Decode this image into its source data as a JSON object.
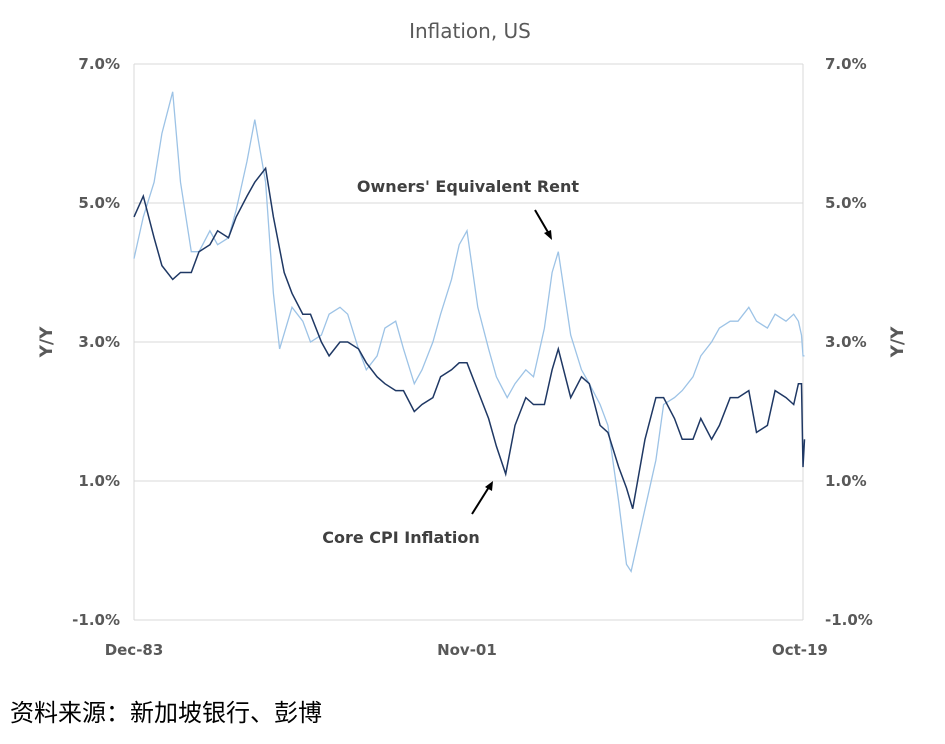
{
  "chart_data": {
    "type": "line",
    "title": "Inflation, US",
    "ylabel_left": "Y/Y",
    "ylabel_right": "Y/Y",
    "ylim": [
      -1.0,
      7.0
    ],
    "yticks": [
      "7.0%",
      "5.0%",
      "3.0%",
      "1.0%",
      "-1.0%"
    ],
    "ytick_values": [
      7.0,
      5.0,
      3.0,
      1.0,
      -1.0
    ],
    "xlim": [
      "1983-12",
      "2019-12"
    ],
    "xtick_labels": [
      "Dec-83",
      "Nov-01",
      "Oct-19"
    ],
    "xtick_values": [
      "1983-12",
      "2001-11",
      "2019-10"
    ],
    "grid": "horizontal",
    "colors": {
      "core_cpi": "#1f3864",
      "oer": "#9dc3e6"
    },
    "series": [
      {
        "name": "Core CPI Inflation",
        "points": [
          [
            "1983-12",
            4.8
          ],
          [
            "1984-06",
            5.1
          ],
          [
            "1985-01",
            4.5
          ],
          [
            "1985-06",
            4.1
          ],
          [
            "1986-01",
            3.9
          ],
          [
            "1986-06",
            4.0
          ],
          [
            "1987-01",
            4.0
          ],
          [
            "1987-06",
            4.3
          ],
          [
            "1988-01",
            4.4
          ],
          [
            "1988-06",
            4.6
          ],
          [
            "1989-01",
            4.5
          ],
          [
            "1989-06",
            4.8
          ],
          [
            "1990-01",
            5.1
          ],
          [
            "1990-06",
            5.3
          ],
          [
            "1991-01",
            5.5
          ],
          [
            "1991-06",
            4.8
          ],
          [
            "1992-01",
            4.0
          ],
          [
            "1992-06",
            3.7
          ],
          [
            "1993-01",
            3.4
          ],
          [
            "1993-06",
            3.4
          ],
          [
            "1994-01",
            3.0
          ],
          [
            "1994-06",
            2.8
          ],
          [
            "1995-01",
            3.0
          ],
          [
            "1995-06",
            3.0
          ],
          [
            "1996-01",
            2.9
          ],
          [
            "1996-06",
            2.7
          ],
          [
            "1997-01",
            2.5
          ],
          [
            "1997-06",
            2.4
          ],
          [
            "1998-01",
            2.3
          ],
          [
            "1998-06",
            2.3
          ],
          [
            "1999-01",
            2.0
          ],
          [
            "1999-06",
            2.1
          ],
          [
            "2000-01",
            2.2
          ],
          [
            "2000-06",
            2.5
          ],
          [
            "2001-01",
            2.6
          ],
          [
            "2001-06",
            2.7
          ],
          [
            "2001-11",
            2.7
          ],
          [
            "2002-06",
            2.3
          ],
          [
            "2003-01",
            1.9
          ],
          [
            "2003-06",
            1.5
          ],
          [
            "2003-12",
            1.1
          ],
          [
            "2004-06",
            1.8
          ],
          [
            "2005-01",
            2.2
          ],
          [
            "2005-06",
            2.1
          ],
          [
            "2006-01",
            2.1
          ],
          [
            "2006-06",
            2.6
          ],
          [
            "2006-10",
            2.9
          ],
          [
            "2007-06",
            2.2
          ],
          [
            "2008-01",
            2.5
          ],
          [
            "2008-06",
            2.4
          ],
          [
            "2009-01",
            1.8
          ],
          [
            "2009-06",
            1.7
          ],
          [
            "2010-01",
            1.2
          ],
          [
            "2010-06",
            0.9
          ],
          [
            "2010-10",
            0.6
          ],
          [
            "2011-06",
            1.6
          ],
          [
            "2012-01",
            2.2
          ],
          [
            "2012-06",
            2.2
          ],
          [
            "2013-01",
            1.9
          ],
          [
            "2013-06",
            1.6
          ],
          [
            "2014-01",
            1.6
          ],
          [
            "2014-06",
            1.9
          ],
          [
            "2015-01",
            1.6
          ],
          [
            "2015-06",
            1.8
          ],
          [
            "2016-01",
            2.2
          ],
          [
            "2016-06",
            2.2
          ],
          [
            "2017-01",
            2.3
          ],
          [
            "2017-06",
            1.7
          ],
          [
            "2018-01",
            1.8
          ],
          [
            "2018-06",
            2.3
          ],
          [
            "2019-01",
            2.2
          ],
          [
            "2019-06",
            2.1
          ],
          [
            "2019-09",
            2.4
          ],
          [
            "2019-11",
            2.4
          ],
          [
            "2019-12",
            1.2
          ],
          [
            "2020-01",
            1.6
          ]
        ]
      },
      {
        "name": "Owners' Equivalent Rent",
        "points": [
          [
            "1983-12",
            4.2
          ],
          [
            "1984-06",
            4.8
          ],
          [
            "1985-01",
            5.3
          ],
          [
            "1985-06",
            6.0
          ],
          [
            "1986-01",
            6.6
          ],
          [
            "1986-06",
            5.3
          ],
          [
            "1987-01",
            4.3
          ],
          [
            "1987-06",
            4.3
          ],
          [
            "1988-01",
            4.6
          ],
          [
            "1988-06",
            4.4
          ],
          [
            "1989-01",
            4.5
          ],
          [
            "1989-06",
            4.9
          ],
          [
            "1990-01",
            5.6
          ],
          [
            "1990-06",
            6.2
          ],
          [
            "1991-01",
            5.3
          ],
          [
            "1991-06",
            3.7
          ],
          [
            "1991-10",
            2.9
          ],
          [
            "1992-06",
            3.5
          ],
          [
            "1993-01",
            3.3
          ],
          [
            "1993-06",
            3.0
          ],
          [
            "1994-01",
            3.1
          ],
          [
            "1994-06",
            3.4
          ],
          [
            "1995-01",
            3.5
          ],
          [
            "1995-06",
            3.4
          ],
          [
            "1996-01",
            2.9
          ],
          [
            "1996-06",
            2.6
          ],
          [
            "1997-01",
            2.8
          ],
          [
            "1997-06",
            3.2
          ],
          [
            "1998-01",
            3.3
          ],
          [
            "1998-06",
            2.9
          ],
          [
            "1999-01",
            2.4
          ],
          [
            "1999-06",
            2.6
          ],
          [
            "2000-01",
            3.0
          ],
          [
            "2000-06",
            3.4
          ],
          [
            "2001-01",
            3.9
          ],
          [
            "2001-06",
            4.4
          ],
          [
            "2001-11",
            4.6
          ],
          [
            "2002-06",
            3.5
          ],
          [
            "2003-01",
            2.9
          ],
          [
            "2003-06",
            2.5
          ],
          [
            "2004-01",
            2.2
          ],
          [
            "2004-06",
            2.4
          ],
          [
            "2005-01",
            2.6
          ],
          [
            "2005-06",
            2.5
          ],
          [
            "2006-01",
            3.2
          ],
          [
            "2006-06",
            4.0
          ],
          [
            "2006-10",
            4.3
          ],
          [
            "2007-06",
            3.1
          ],
          [
            "2008-01",
            2.6
          ],
          [
            "2008-06",
            2.4
          ],
          [
            "2009-01",
            2.1
          ],
          [
            "2009-06",
            1.8
          ],
          [
            "2010-01",
            0.7
          ],
          [
            "2010-06",
            -0.2
          ],
          [
            "2010-09",
            -0.3
          ],
          [
            "2011-06",
            0.6
          ],
          [
            "2012-01",
            1.3
          ],
          [
            "2012-06",
            2.1
          ],
          [
            "2013-01",
            2.2
          ],
          [
            "2013-06",
            2.3
          ],
          [
            "2014-01",
            2.5
          ],
          [
            "2014-06",
            2.8
          ],
          [
            "2015-01",
            3.0
          ],
          [
            "2015-06",
            3.2
          ],
          [
            "2016-01",
            3.3
          ],
          [
            "2016-06",
            3.3
          ],
          [
            "2017-01",
            3.5
          ],
          [
            "2017-06",
            3.3
          ],
          [
            "2018-01",
            3.2
          ],
          [
            "2018-06",
            3.4
          ],
          [
            "2019-01",
            3.3
          ],
          [
            "2019-06",
            3.4
          ],
          [
            "2019-09",
            3.3
          ],
          [
            "2019-11",
            3.1
          ],
          [
            "2019-12",
            2.8
          ],
          [
            "2020-01",
            2.8
          ]
        ]
      }
    ],
    "annotations": [
      "Owners' Equivalent Rent",
      "Core CPI Inflation"
    ]
  },
  "footer": {
    "source": "资料来源：新加坡银行、彭博"
  }
}
